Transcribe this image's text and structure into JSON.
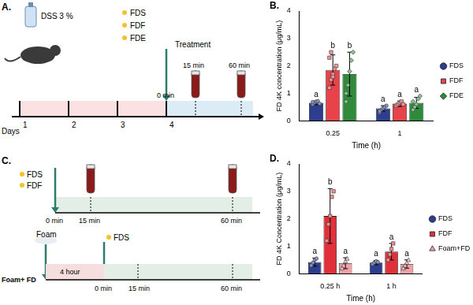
{
  "chart_data": [
    {
      "panel": "B.",
      "type": "bar",
      "categories": [
        "0.25",
        "1"
      ],
      "x_label": "Time (h)",
      "y_label": "FD 4K concentration (μg/mL)",
      "ylim": [
        0,
        4
      ],
      "yticks": [
        0,
        1,
        2,
        3,
        4
      ],
      "grid": false,
      "legend": "right",
      "series": [
        {
          "name": "FDS",
          "color": "#2d3e8e",
          "marker": "circle",
          "values": [
            0.65,
            0.45
          ],
          "errors": [
            0.07,
            0.1
          ],
          "letters": [
            "a",
            "a"
          ],
          "points": [
            [
              0.6,
              0.65,
              0.7,
              0.72,
              0.62,
              0.68
            ],
            [
              0.3,
              0.4,
              0.45,
              0.5,
              0.55,
              0.35
            ]
          ]
        },
        {
          "name": "FDF",
          "color": "#e8434b",
          "marker": "square",
          "values": [
            1.85,
            0.62
          ],
          "errors": [
            0.55,
            0.1
          ],
          "letters": [
            "b",
            "a"
          ],
          "points": [
            [
              1.2,
              1.5,
              1.7,
              1.9,
              2.0,
              2.3,
              2.5,
              1.6
            ],
            [
              0.55,
              0.6,
              0.65,
              0.7,
              0.6
            ]
          ]
        },
        {
          "name": "FDE",
          "color": "#2f8a3b",
          "marker": "diamond",
          "values": [
            1.7,
            0.65
          ],
          "errors": [
            0.8,
            0.2
          ],
          "letters": [
            "b",
            "a"
          ],
          "points": [
            [
              0.7,
              1.3,
              1.8,
              2.2,
              2.5,
              1.0
            ],
            [
              0.4,
              0.5,
              0.6,
              0.8,
              0.9,
              0.7
            ]
          ]
        }
      ]
    },
    {
      "panel": "D.",
      "type": "bar",
      "categories": [
        "0.25 h",
        "1 h"
      ],
      "x_label": "Time (h)",
      "y_label": "FD 4K Concentration (μg/mL)",
      "ylim": [
        0,
        4
      ],
      "yticks": [
        0,
        1,
        2,
        3,
        4
      ],
      "grid": false,
      "legend": "right",
      "series": [
        {
          "name": "FDS",
          "color": "#2d3e8e",
          "marker": "circle",
          "values": [
            0.42,
            0.4
          ],
          "errors": [
            0.15,
            0.08
          ],
          "letters": [
            "a",
            "a"
          ],
          "points": [
            [
              0.3,
              0.4,
              0.5,
              0.55
            ],
            [
              0.35,
              0.4,
              0.45,
              0.42
            ]
          ]
        },
        {
          "name": "FDF",
          "color": "#e0303a",
          "marker": "square",
          "values": [
            2.1,
            0.8
          ],
          "errors": [
            1.0,
            0.3
          ],
          "letters": [
            "b",
            "a"
          ],
          "points": [
            [
              1.2,
              1.8,
              2.1,
              2.8,
              3.0
            ],
            [
              0.5,
              0.7,
              0.9,
              1.1
            ]
          ]
        },
        {
          "name": "Foam+FD",
          "color": "#f2a0a8",
          "marker": "triangle",
          "values": [
            0.38,
            0.35
          ],
          "errors": [
            0.2,
            0.15
          ],
          "letters": [
            "a",
            "a"
          ],
          "points": [
            [
              0.2,
              0.3,
              0.45,
              0.55
            ],
            [
              0.2,
              0.3,
              0.4,
              0.5
            ]
          ]
        }
      ]
    }
  ],
  "diagrams": [
    {
      "panel": "A.",
      "agent": "DSS 3 %",
      "days_label": "Days",
      "days": [
        1,
        2,
        3,
        4
      ],
      "treatments": [
        "FDS",
        "FDF",
        "FDE"
      ],
      "treatment_label": "Treatment",
      "times": [
        "0 min",
        "15 min",
        "60 min"
      ]
    },
    {
      "panel": "C.",
      "row1": {
        "treatments": [
          "FDS",
          "FDF"
        ],
        "times": [
          "0 min",
          "15 min",
          "60 min"
        ]
      },
      "row2": {
        "label": "Foam+ FD",
        "pre": "Foam",
        "pre_duration": "4 hour",
        "treatment": "FDS",
        "times": [
          "0 min",
          "15 min",
          "60 min"
        ]
      }
    }
  ]
}
